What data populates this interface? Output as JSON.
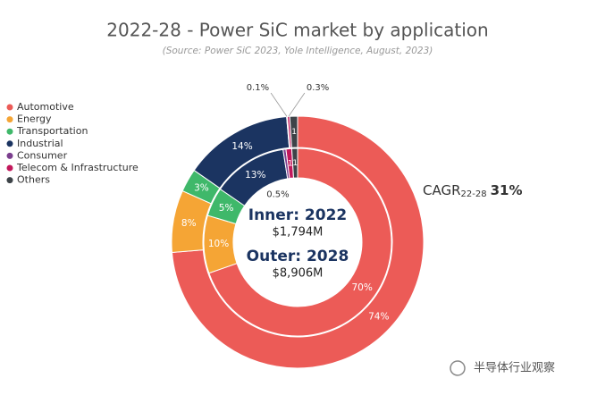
{
  "chart_data": {
    "type": "donut",
    "title": "2022-28 - Power SiC market by application",
    "subtitle": "(Source: Power SiC 2023, Yole Intelligence, August, 2023)",
    "categories": [
      "Automotive",
      "Energy",
      "Transportation",
      "Industrial",
      "Consumer",
      "Telecom & Infrastructure",
      "Others"
    ],
    "colors": [
      "#ec5b57",
      "#f5a535",
      "#3fb86a",
      "#1b3461",
      "#7b3f8e",
      "#c2185b",
      "#3d4348"
    ],
    "series": [
      {
        "name": "Inner: 2022",
        "total": "$1,794M",
        "values": [
          70,
          10,
          5,
          13,
          0.5,
          1,
          1
        ],
        "value_labels": [
          "70%",
          "10%",
          "5%",
          "13%",
          "0.5%",
          "1",
          "1"
        ]
      },
      {
        "name": "Outer: 2028",
        "total": "$8,906M",
        "values": [
          74,
          8,
          3,
          14,
          0.1,
          0.3,
          1
        ],
        "value_labels": [
          "74%",
          "8%",
          "3%",
          "14%",
          "0.1%",
          "0.3%",
          "1"
        ]
      }
    ],
    "annotation": {
      "text": "CAGR",
      "sub": "22-28",
      "value": "31%"
    },
    "watermark": "半导体行业观察"
  }
}
